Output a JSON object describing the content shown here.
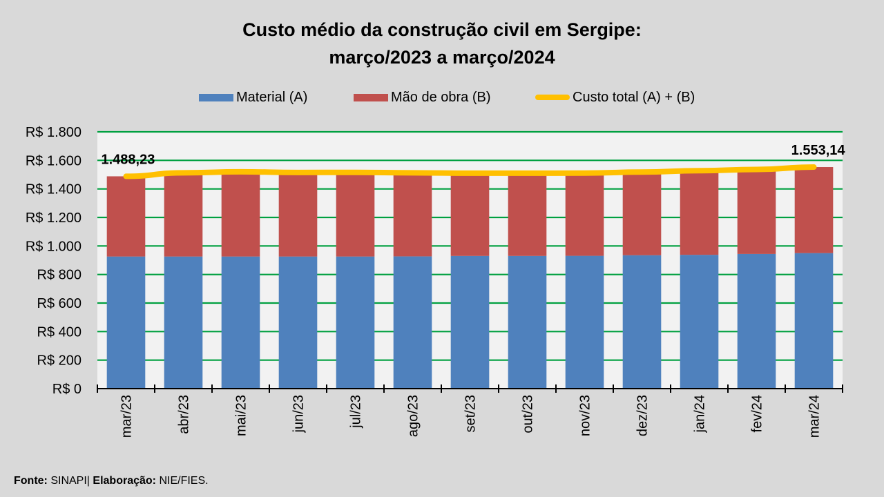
{
  "chart_data": {
    "type": "bar",
    "stacked": true,
    "title": "Custo médio da construção civil em Sergipe:",
    "subtitle": "março/2023 a março/2024",
    "xlabel": "",
    "ylabel": "",
    "ylim": [
      0,
      1800
    ],
    "yticks": [
      0,
      200,
      400,
      600,
      800,
      1000,
      1200,
      1400,
      1600,
      1800
    ],
    "ytick_labels": [
      "R$ 0",
      "R$ 200",
      "R$ 400",
      "R$ 600",
      "R$ 800",
      "R$ 1.000",
      "R$ 1.200",
      "R$ 1.400",
      "R$ 1.600",
      "R$ 1.800"
    ],
    "grid": true,
    "legend_position": "top",
    "categories": [
      "mar/23",
      "abr/23",
      "mai/23",
      "jun/23",
      "jul/23",
      "ago/23",
      "set/23",
      "out/23",
      "nov/23",
      "dez/23",
      "jan/24",
      "fev/24",
      "mar/24"
    ],
    "series": [
      {
        "name": "Material (A)",
        "kind": "bar",
        "color": "#4f81bd",
        "values": [
          926,
          926,
          926,
          926,
          926,
          927,
          930,
          930,
          931,
          935,
          938,
          944,
          950
        ]
      },
      {
        "name": "Mão de obra (B)",
        "kind": "bar",
        "color": "#c0504d",
        "values": [
          562.23,
          587,
          594,
          589,
          590,
          586,
          580,
          580,
          580,
          583,
          590,
          592,
          603.14
        ]
      },
      {
        "name": "Custo total (A) + (B)",
        "kind": "line",
        "color": "#ffc000",
        "values": [
          1488.23,
          1513,
          1520,
          1515,
          1516,
          1513,
          1510,
          1510,
          1511,
          1518,
          1528,
          1536,
          1553.14
        ]
      }
    ],
    "annotations": [
      {
        "category": "mar/23",
        "text": "1.488,23"
      },
      {
        "category": "mar/24",
        "text": "1.553,14"
      }
    ]
  },
  "colors": {
    "background": "#d9d9d9",
    "plot_background": "#f2f2f2",
    "gridline": "#00a040",
    "axis": "#000000"
  },
  "footer": {
    "source_label": "Fonte:",
    "source_value": "SINAPI",
    "separator": "|",
    "credit_label": "Elaboração:",
    "credit_value": "NIE/FIES."
  }
}
